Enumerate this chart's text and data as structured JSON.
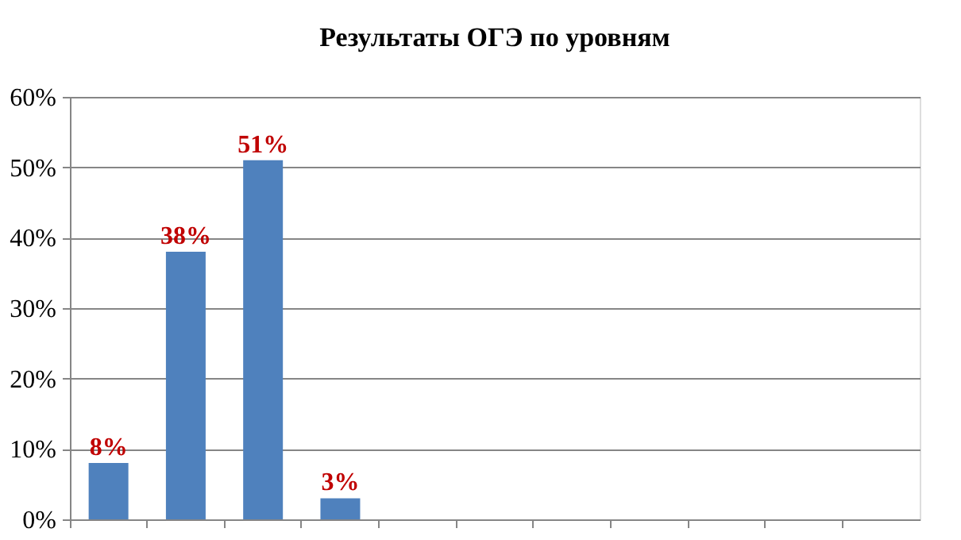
{
  "chart_data": {
    "type": "bar",
    "title": "Результаты ОГЭ по уровням",
    "categories": [
      null,
      null,
      null,
      null,
      null,
      null,
      null,
      null,
      null,
      null,
      null
    ],
    "values": [
      8,
      38,
      51,
      3,
      null,
      null,
      null,
      null,
      null,
      null,
      null
    ],
    "value_labels": [
      "8%",
      "38%",
      "51%",
      "3%",
      null,
      null,
      null,
      null,
      null,
      null,
      null
    ],
    "color": "#4f81bd",
    "ylim": [
      0,
      60
    ],
    "yticks": [
      {
        "value": 0,
        "label": "0%"
      },
      {
        "value": 10,
        "label": "10%"
      },
      {
        "value": 20,
        "label": "20%"
      },
      {
        "value": 30,
        "label": "30%"
      },
      {
        "value": 40,
        "label": "40%"
      },
      {
        "value": 50,
        "label": "50%"
      },
      {
        "value": 60,
        "label": "60%"
      }
    ],
    "grid": "y",
    "tick_labels": "y"
  }
}
